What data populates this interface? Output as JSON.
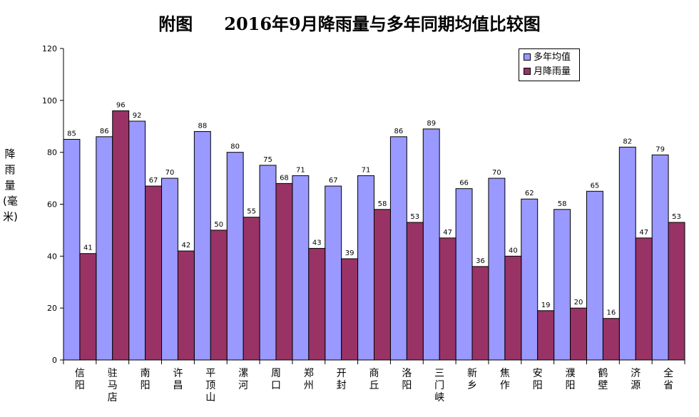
{
  "title_part1": "附图",
  "title_part2": "2016年9月降雨量与多年同期均值比较图",
  "colors": {
    "series1": "#9999ff",
    "series2": "#993366"
  },
  "chart_data": {
    "type": "bar",
    "title": "附图 2016年9月降雨量与多年同期均值比较图",
    "ylabel": "降雨量(毫米)",
    "ylim": [
      0,
      120
    ],
    "yticks": [
      "0",
      "20",
      "40",
      "60",
      "80",
      "100",
      "120"
    ],
    "categories": [
      "信阳",
      "驻马店",
      "南阳",
      "许昌",
      "平顶山",
      "漯河",
      "周口",
      "郑州",
      "开封",
      "商丘",
      "洛阳",
      "三门峡",
      "新乡",
      "焦作",
      "安阳",
      "濮阳",
      "鹤壁",
      "济源",
      "全省"
    ],
    "series": [
      {
        "name": "多年均值",
        "values": [
          85,
          86,
          92,
          70,
          88,
          80,
          75,
          71,
          67,
          71,
          86,
          89,
          66,
          70,
          62,
          58,
          65,
          82,
          79
        ]
      },
      {
        "name": "月降雨量",
        "values": [
          41,
          96,
          67,
          42,
          50,
          55,
          68,
          43,
          39,
          58,
          53,
          47,
          36,
          40,
          19,
          20,
          16,
          47,
          53
        ]
      }
    ],
    "legend_position": "top-right",
    "grid": false
  }
}
